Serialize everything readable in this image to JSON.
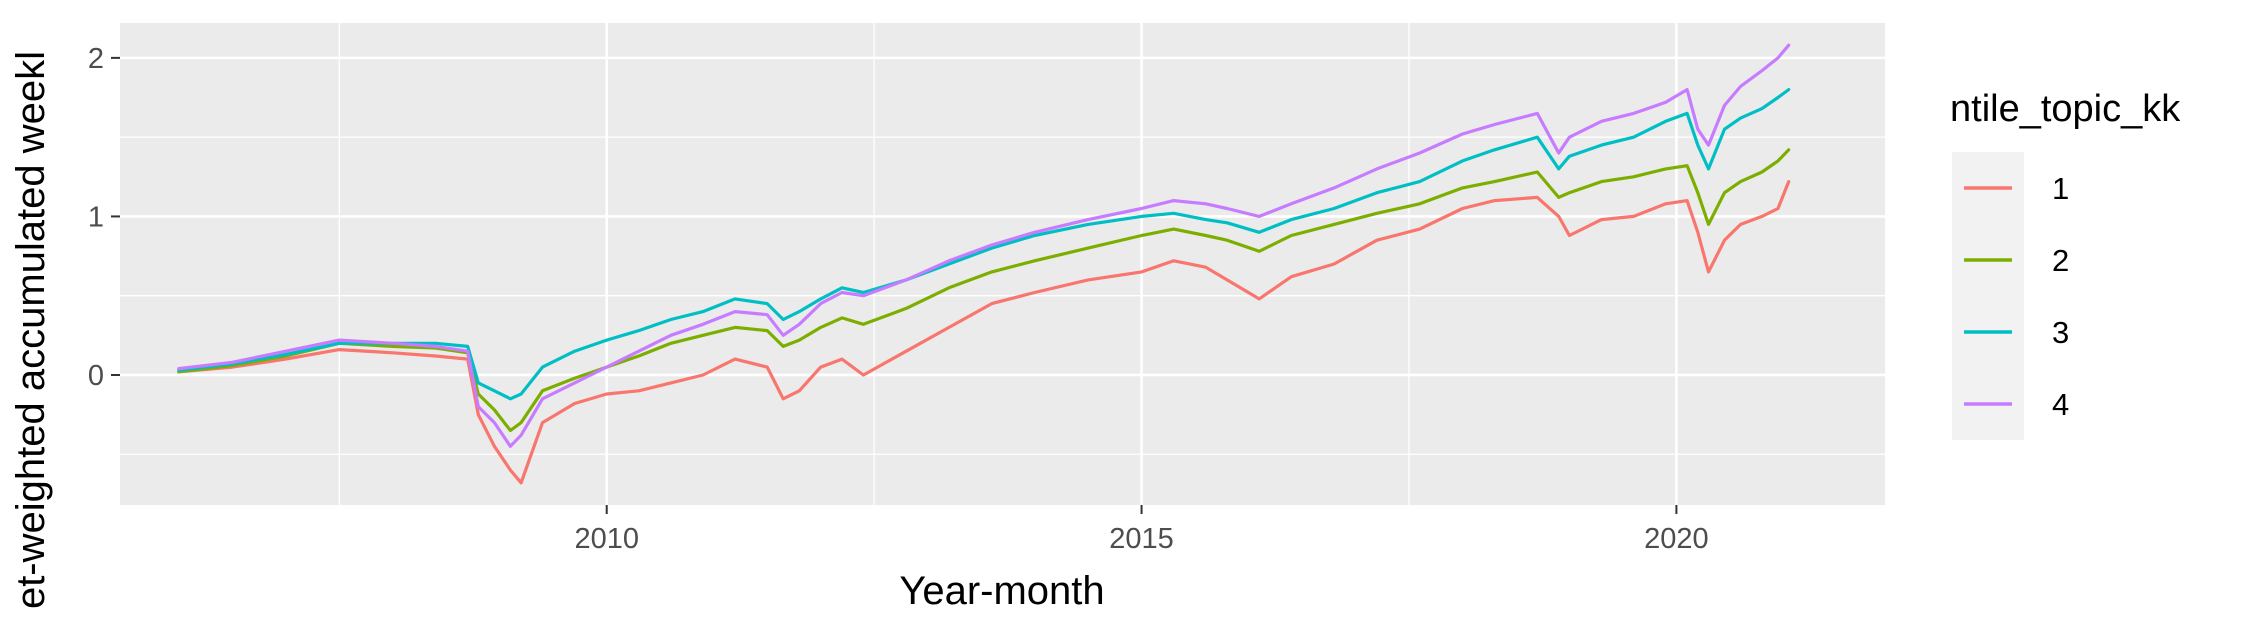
{
  "chart_data": {
    "type": "line",
    "title": "",
    "xlabel": "Year-month",
    "ylabel": "et-weighted accumulated weekl",
    "xlim": [
      2005.45,
      2021.95
    ],
    "ylim": [
      -0.82,
      2.22
    ],
    "x_ticks": [
      2010,
      2015,
      2020
    ],
    "x_tick_labels": [
      "2010",
      "2015",
      "2020"
    ],
    "x_minor_ticks": [
      2007.5,
      2012.5,
      2017.5
    ],
    "y_ticks": [
      0,
      1,
      2
    ],
    "y_tick_labels": [
      "0",
      "1",
      "2"
    ],
    "y_minor_ticks": [
      -0.5,
      0.5,
      1.5
    ],
    "grid": true,
    "legend": {
      "title": "ntile_topic_kk",
      "position": "right"
    },
    "series": [
      {
        "name": "1",
        "color": "#F8766D",
        "x": [
          2006.0,
          2006.5,
          2007.0,
          2007.5,
          2008.0,
          2008.4,
          2008.7,
          2008.8,
          2008.95,
          2009.1,
          2009.2,
          2009.4,
          2009.7,
          2010.0,
          2010.3,
          2010.6,
          2010.9,
          2011.2,
          2011.5,
          2011.65,
          2011.8,
          2012.0,
          2012.2,
          2012.4,
          2012.8,
          2013.2,
          2013.6,
          2014.0,
          2014.5,
          2015.0,
          2015.3,
          2015.6,
          2015.8,
          2016.1,
          2016.4,
          2016.8,
          2017.2,
          2017.6,
          2018.0,
          2018.3,
          2018.7,
          2018.9,
          2019.0,
          2019.3,
          2019.6,
          2019.9,
          2020.1,
          2020.2,
          2020.3,
          2020.45,
          2020.6,
          2020.8,
          2020.95,
          2021.05
        ],
        "y": [
          0.02,
          0.05,
          0.1,
          0.16,
          0.14,
          0.12,
          0.1,
          -0.25,
          -0.45,
          -0.6,
          -0.68,
          -0.3,
          -0.18,
          -0.12,
          -0.1,
          -0.05,
          0.0,
          0.1,
          0.05,
          -0.15,
          -0.1,
          0.05,
          0.1,
          0.0,
          0.15,
          0.3,
          0.45,
          0.52,
          0.6,
          0.65,
          0.72,
          0.68,
          0.6,
          0.48,
          0.62,
          0.7,
          0.85,
          0.92,
          1.05,
          1.1,
          1.12,
          1.0,
          0.88,
          0.98,
          1.0,
          1.08,
          1.1,
          0.9,
          0.65,
          0.85,
          0.95,
          1.0,
          1.05,
          1.22
        ]
      },
      {
        "name": "2",
        "color": "#7CAE00",
        "x": [
          2006.0,
          2006.5,
          2007.0,
          2007.5,
          2008.0,
          2008.4,
          2008.7,
          2008.8,
          2008.95,
          2009.1,
          2009.2,
          2009.4,
          2009.7,
          2010.0,
          2010.3,
          2010.6,
          2010.9,
          2011.2,
          2011.5,
          2011.65,
          2011.8,
          2012.0,
          2012.2,
          2012.4,
          2012.8,
          2013.2,
          2013.6,
          2014.0,
          2014.5,
          2015.0,
          2015.3,
          2015.6,
          2015.8,
          2016.1,
          2016.4,
          2016.8,
          2017.2,
          2017.6,
          2018.0,
          2018.3,
          2018.7,
          2018.9,
          2019.0,
          2019.3,
          2019.6,
          2019.9,
          2020.1,
          2020.2,
          2020.3,
          2020.45,
          2020.6,
          2020.8,
          2020.95,
          2021.05
        ],
        "y": [
          0.02,
          0.06,
          0.12,
          0.2,
          0.18,
          0.17,
          0.14,
          -0.12,
          -0.22,
          -0.35,
          -0.3,
          -0.1,
          -0.02,
          0.05,
          0.12,
          0.2,
          0.25,
          0.3,
          0.28,
          0.18,
          0.22,
          0.3,
          0.36,
          0.32,
          0.42,
          0.55,
          0.65,
          0.72,
          0.8,
          0.88,
          0.92,
          0.88,
          0.85,
          0.78,
          0.88,
          0.95,
          1.02,
          1.08,
          1.18,
          1.22,
          1.28,
          1.12,
          1.15,
          1.22,
          1.25,
          1.3,
          1.32,
          1.15,
          0.95,
          1.15,
          1.22,
          1.28,
          1.35,
          1.42
        ]
      },
      {
        "name": "3",
        "color": "#00BFC4",
        "x": [
          2006.0,
          2006.5,
          2007.0,
          2007.5,
          2008.0,
          2008.4,
          2008.7,
          2008.8,
          2008.95,
          2009.1,
          2009.2,
          2009.4,
          2009.7,
          2010.0,
          2010.3,
          2010.6,
          2010.9,
          2011.2,
          2011.5,
          2011.65,
          2011.8,
          2012.0,
          2012.2,
          2012.4,
          2012.8,
          2013.2,
          2013.6,
          2014.0,
          2014.5,
          2015.0,
          2015.3,
          2015.6,
          2015.8,
          2016.1,
          2016.4,
          2016.8,
          2017.2,
          2017.6,
          2018.0,
          2018.3,
          2018.7,
          2018.9,
          2019.0,
          2019.3,
          2019.6,
          2019.9,
          2020.1,
          2020.2,
          2020.3,
          2020.45,
          2020.6,
          2020.8,
          2020.95,
          2021.05
        ],
        "y": [
          0.03,
          0.07,
          0.13,
          0.2,
          0.2,
          0.2,
          0.18,
          -0.05,
          -0.1,
          -0.15,
          -0.12,
          0.05,
          0.15,
          0.22,
          0.28,
          0.35,
          0.4,
          0.48,
          0.45,
          0.35,
          0.4,
          0.48,
          0.55,
          0.52,
          0.6,
          0.7,
          0.8,
          0.88,
          0.95,
          1.0,
          1.02,
          0.98,
          0.96,
          0.9,
          0.98,
          1.05,
          1.15,
          1.22,
          1.35,
          1.42,
          1.5,
          1.3,
          1.38,
          1.45,
          1.5,
          1.6,
          1.65,
          1.45,
          1.3,
          1.55,
          1.62,
          1.68,
          1.75,
          1.8
        ]
      },
      {
        "name": "4",
        "color": "#C77CFF",
        "x": [
          2006.0,
          2006.5,
          2007.0,
          2007.5,
          2008.0,
          2008.4,
          2008.7,
          2008.8,
          2008.95,
          2009.1,
          2009.2,
          2009.4,
          2009.7,
          2010.0,
          2010.3,
          2010.6,
          2010.9,
          2011.2,
          2011.5,
          2011.65,
          2011.8,
          2012.0,
          2012.2,
          2012.4,
          2012.8,
          2013.2,
          2013.6,
          2014.0,
          2014.5,
          2015.0,
          2015.3,
          2015.6,
          2015.8,
          2016.1,
          2016.4,
          2016.8,
          2017.2,
          2017.6,
          2018.0,
          2018.3,
          2018.7,
          2018.9,
          2019.0,
          2019.3,
          2019.6,
          2019.9,
          2020.1,
          2020.2,
          2020.3,
          2020.45,
          2020.6,
          2020.8,
          2020.95,
          2021.05
        ],
        "y": [
          0.04,
          0.08,
          0.15,
          0.22,
          0.2,
          0.18,
          0.15,
          -0.2,
          -0.3,
          -0.45,
          -0.38,
          -0.15,
          -0.05,
          0.05,
          0.15,
          0.25,
          0.32,
          0.4,
          0.38,
          0.25,
          0.32,
          0.45,
          0.52,
          0.5,
          0.6,
          0.72,
          0.82,
          0.9,
          0.98,
          1.05,
          1.1,
          1.08,
          1.05,
          1.0,
          1.08,
          1.18,
          1.3,
          1.4,
          1.52,
          1.58,
          1.65,
          1.4,
          1.5,
          1.6,
          1.65,
          1.72,
          1.8,
          1.55,
          1.45,
          1.7,
          1.82,
          1.92,
          2.0,
          2.08
        ]
      }
    ]
  }
}
